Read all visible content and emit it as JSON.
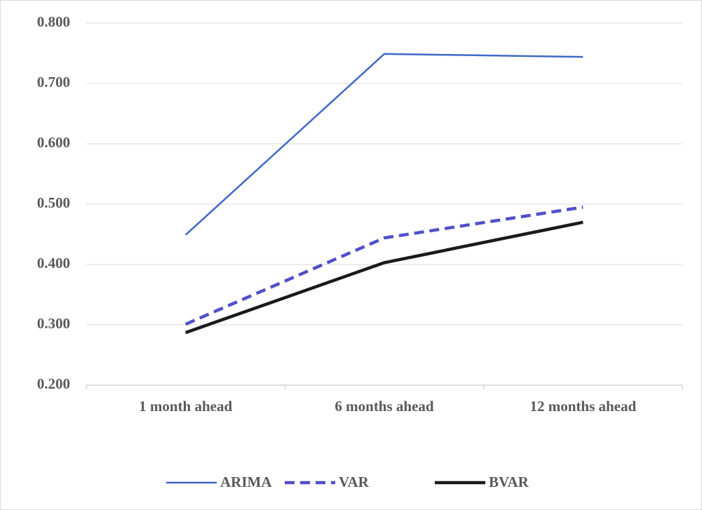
{
  "chart_data": {
    "type": "line",
    "categories": [
      "1 month ahead",
      "6 months ahead",
      "12 months ahead"
    ],
    "series": [
      {
        "name": "ARIMA",
        "color": "#4068c8",
        "line_style": "solid",
        "values": [
          0.449,
          0.749,
          0.744
        ]
      },
      {
        "name": "VAR",
        "color": "#5050c8",
        "line_style": "dashed",
        "values": [
          0.301,
          0.444,
          0.495
        ]
      },
      {
        "name": "BVAR",
        "color": "#1a1a1a",
        "line_style": "solid",
        "values": [
          0.287,
          0.403,
          0.47
        ]
      }
    ],
    "ylim": [
      0.2,
      0.8
    ],
    "yticks": [
      {
        "value": 0.2,
        "label": "0.200"
      },
      {
        "value": 0.3,
        "label": "0.300"
      },
      {
        "value": 0.4,
        "label": "0.400"
      },
      {
        "value": 0.5,
        "label": "0.500"
      },
      {
        "value": 0.6,
        "label": "0.600"
      },
      {
        "value": 0.7,
        "label": "0.700"
      },
      {
        "value": 0.8,
        "label": "0.800"
      }
    ],
    "grid": true,
    "legend": "bottom"
  }
}
